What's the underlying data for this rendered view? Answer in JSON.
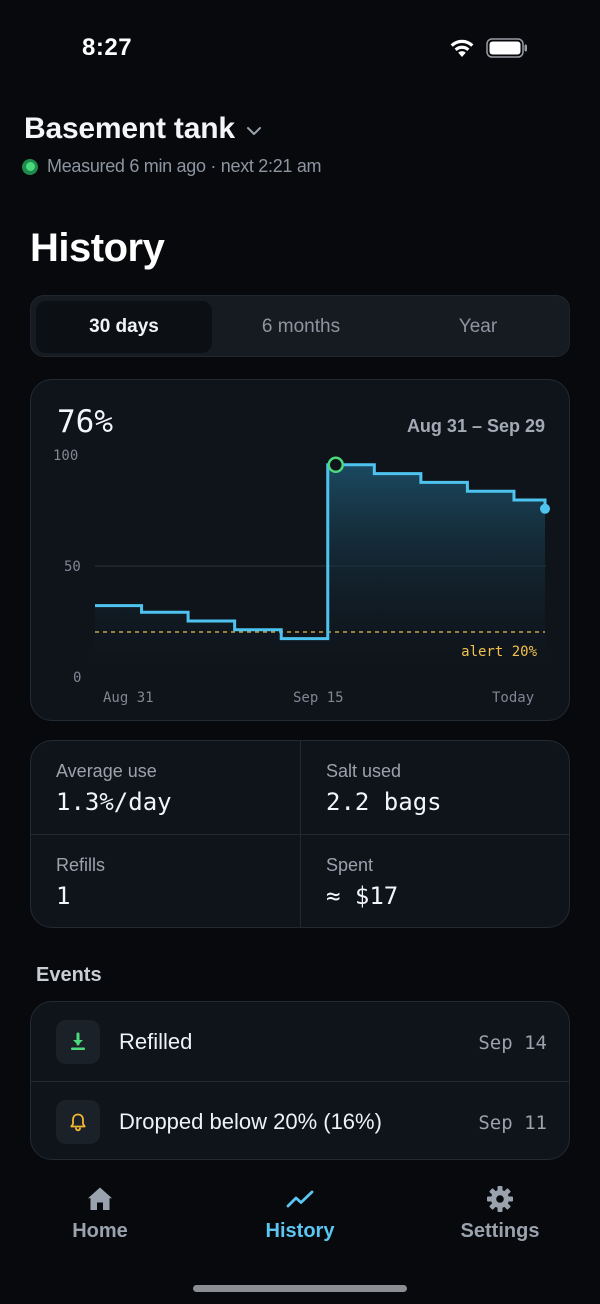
{
  "status_bar": {
    "time": "8:27"
  },
  "header": {
    "device_name": "Basement tank",
    "measured_text": "Measured 6 min ago · next 2:21 am"
  },
  "page_title": "History",
  "range_tabs": [
    "30 days",
    "6 months",
    "Year"
  ],
  "range_selected": "30 days",
  "chart": {
    "current_value": "76%",
    "date_range": "Aug 31 – Sep 29",
    "alert_label": "alert 20%",
    "x_tick_labels": [
      "Aug 31",
      "Sep 15",
      "Today"
    ],
    "y_tick_labels": [
      "100",
      "50",
      "0"
    ]
  },
  "chart_data": {
    "type": "area",
    "title": "",
    "xlabel": "",
    "ylabel": "",
    "ylim": [
      0,
      100
    ],
    "step": "post",
    "x_labels": [
      "Aug 31",
      "Sep 15",
      "Today"
    ],
    "series": [
      {
        "x": [
          "Aug 31",
          "Sep 2",
          "Sep 3",
          "Sep 5",
          "Sep 6",
          "Sep 8",
          "Sep 9",
          "Sep 11",
          "Sep 12",
          "Sep 14",
          "Sep 15",
          "Sep 17",
          "Sep 18",
          "Sep 20",
          "Sep 21",
          "Sep 23",
          "Sep 24",
          "Sep 26",
          "Sep 27",
          "Sep 29"
        ],
        "y": [
          32,
          32,
          29,
          29,
          25,
          25,
          21,
          21,
          17,
          17,
          96,
          96,
          92,
          92,
          88,
          88,
          84,
          84,
          80,
          76
        ]
      }
    ],
    "threshold": {
      "value": 20,
      "label": "alert 20%"
    },
    "markers": [
      {
        "x": "Sep 15",
        "y": 96,
        "style": "open-circle"
      },
      {
        "x": "Sep 29",
        "y": 76,
        "style": "filled-dot"
      }
    ],
    "grid": "horizontal at 50"
  },
  "stats": {
    "average_use": {
      "label": "Average use",
      "value": "1.3%/day"
    },
    "salt_used": {
      "label": "Salt used",
      "value": "2.2 bags"
    },
    "refills": {
      "label": "Refills",
      "value": "1"
    },
    "spent": {
      "label": "Spent",
      "value": "≈ $17"
    }
  },
  "events_title": "Events",
  "events": [
    {
      "icon": "download-icon",
      "text": "Refilled",
      "date": "Sep 14"
    },
    {
      "icon": "bell-icon",
      "text": "Dropped below 20% (16%)",
      "date": "Sep 11"
    }
  ],
  "tab_bar": {
    "home": "Home",
    "history": "History",
    "settings": "Settings"
  },
  "colors": {
    "accent": "#5cc6f2",
    "line": "#4fc3f0",
    "alert": "#f2c14e",
    "live": "#4cd97b"
  }
}
